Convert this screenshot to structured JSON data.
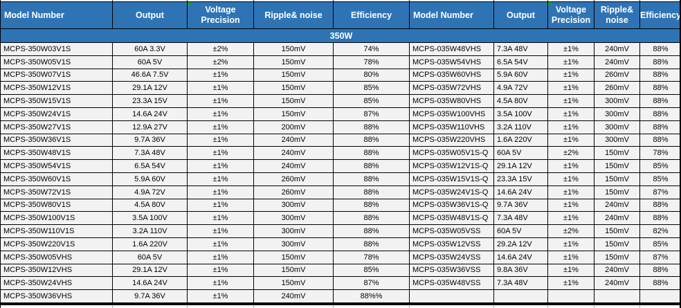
{
  "colors": {
    "header_bg": "#2E74B5",
    "header_text": "#FFFFFF",
    "row_bg": "#F2F2F2",
    "grid_border": "#000000",
    "error_marker_green": "#1E9E1E"
  },
  "table": {
    "section_title": "350W",
    "columns": [
      "Model Number",
      "Output",
      "Voltage Precision",
      "Ripple&  noise",
      "Efficiency"
    ],
    "columns_right": [
      "Model Number",
      "Output",
      "Voltage Precision",
      "Ripple& noise",
      "Efficiency"
    ],
    "left_rows": [
      [
        "MCPS-350W03V1S",
        "60A 3.3V",
        "±2%",
        "150mV",
        "74%"
      ],
      [
        "MCPS-350W05V1S",
        "60A 5V",
        "±2%",
        "150mV",
        "78%"
      ],
      [
        "MCPS-350W07V1S",
        "46.6A 7.5V",
        "±1%",
        "150mV",
        "80%"
      ],
      [
        "MCPS-350W12V1S",
        "29.1A 12V",
        "±1%",
        "150mV",
        "85%"
      ],
      [
        "MCPS-350W15V1S",
        "23.3A 15V",
        "±1%",
        "150mV",
        "85%"
      ],
      [
        "MCPS-350W24V1S",
        "14.6A 24V",
        "±1%",
        "150mV",
        "87%"
      ],
      [
        "MCPS-350W27V1S",
        "12.9A 27V",
        "±1%",
        "200mV",
        "88%"
      ],
      [
        "MCPS-350W36V1S",
        "9.7A 36V",
        "±1%",
        "240mV",
        "88%"
      ],
      [
        "MCPS-350W48V1S",
        "7.3A 48V",
        "±1%",
        "240mV",
        "88%"
      ],
      [
        "MCPS-350W54V1S",
        "6.5A 54V",
        "±1%",
        "240mV",
        "88%"
      ],
      [
        "MCPS-350W60V1S",
        "5.9A 60V",
        "±1%",
        "260mV",
        "88%"
      ],
      [
        "MCPS-350W72V1S",
        "4.9A 72V",
        "±1%",
        "260mV",
        "88%"
      ],
      [
        "MCPS-350W80V1S",
        "4.5A 80V",
        "±1%",
        "300mV",
        "88%"
      ],
      [
        "MCPS-350W100V1S",
        "3.5A 100V",
        "±1%",
        "300mV",
        "88%"
      ],
      [
        "MCPS-350W110V1S",
        "3.2A 110V",
        "±1%",
        "300mV",
        "88%"
      ],
      [
        "MCPS-350W220V1S",
        "1.6A 220V",
        "±1%",
        "300mV",
        "88%"
      ],
      [
        "MCPS-350W05VHS",
        "60A 5V",
        "±1%",
        "150mV",
        "78%"
      ],
      [
        "MCPS-350W12VHS",
        "29.1A 12V",
        "±1%",
        "150mV",
        "85%"
      ],
      [
        "MCPS-350W24VHS",
        "14.6A 24V",
        "±1%",
        "150mV",
        "87%"
      ],
      [
        "MCPS-350W36VHS",
        "9.7A 36V",
        "±1%",
        "240mV",
        "88%%"
      ]
    ],
    "right_rows": [
      [
        "MCPS-035W48VHS",
        "7.3A 48V",
        "±1%",
        "240mV",
        "88%"
      ],
      [
        "MCPS-035W54VHS",
        "6.5A 54V",
        "±1%",
        "240mV",
        "88%"
      ],
      [
        "MCPS-035W60VHS",
        "5.9A 60V",
        "±1%",
        "260mV",
        "88%"
      ],
      [
        "MCPS-035W72VHS",
        "4.9A 72V",
        "±1%",
        "260mV",
        "88%"
      ],
      [
        "MCPS-035W80VHS",
        "4.5A 80V",
        "±1%",
        "300mV",
        "88%"
      ],
      [
        "MCPS-035W100VHS",
        "3.5A 100V",
        "±1%",
        "300mV",
        "88%"
      ],
      [
        "MCPS-035W110VHS",
        "3.2A 110V",
        "±1%",
        "300mV",
        "88%"
      ],
      [
        "MCPS-035W220VHS",
        "1.6A 220V",
        "±1%",
        "300mV",
        "88%"
      ],
      [
        "MCPS-035W05V1S-Q",
        "60A 5V",
        "±2%",
        "150mV",
        "78%"
      ],
      [
        "MCPS-035W12V1S-Q",
        "29.1A 12V",
        "±1%",
        "150mV",
        "85%"
      ],
      [
        "MCPS-035W15V1S-Q",
        "23.3A 15V",
        "±1%",
        "150mV",
        "85%"
      ],
      [
        "MCPS-035W24V1S-Q",
        "14.6A 24V",
        "±1%",
        "150mV",
        "87%"
      ],
      [
        "MCPS-035W36V1S-Q",
        "9.7A 36V",
        "±1%",
        "240mV",
        "88%"
      ],
      [
        "MCPS-035W48V1S-Q",
        "7.3A 48V",
        "±1%",
        "240mV",
        "88%"
      ],
      [
        "MCPS-035W05VSS",
        "60A 5V",
        "±2%",
        "150mV",
        "82%"
      ],
      [
        "MCPS-035W12VSS",
        "29.2A 12V",
        "±1%",
        "150mV",
        "85%"
      ],
      [
        "MCPS-035W24VSS",
        "14.6A 24V",
        "±1%",
        "150mV",
        "87%"
      ],
      [
        "MCPS-035W36VSS",
        "9.8A 36V",
        "±1%",
        "240mV",
        "88%"
      ],
      [
        "MCPS-035W48VSS",
        "7.3A 48V",
        "±1%",
        "240mV",
        "88%"
      ],
      [
        "",
        "",
        "",
        "",
        ""
      ]
    ]
  }
}
